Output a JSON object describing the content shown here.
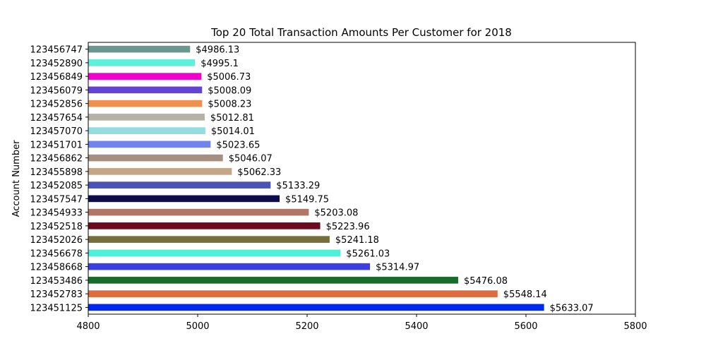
{
  "chart_data": {
    "type": "bar",
    "orientation": "horizontal",
    "title": "Top 20 Total Transaction Amounts Per Customer for 2018",
    "xlabel": "",
    "ylabel": "Account Number",
    "xlim": [
      4800,
      5800
    ],
    "xticks": [
      "4800",
      "5000",
      "5200",
      "5400",
      "5600",
      "5800"
    ],
    "grid": false,
    "value_prefix": "$",
    "categories": [
      "123456747",
      "123452890",
      "123456849",
      "123456079",
      "123452856",
      "123457654",
      "123457070",
      "123451701",
      "123456862",
      "123455898",
      "123452085",
      "123457547",
      "123454933",
      "123452518",
      "123452026",
      "123456678",
      "123458668",
      "123453486",
      "123452783",
      "123451125"
    ],
    "values": [
      4986.13,
      4995.1,
      5006.73,
      5008.09,
      5008.23,
      5012.81,
      5014.01,
      5023.65,
      5046.07,
      5062.33,
      5133.29,
      5149.75,
      5203.08,
      5223.96,
      5241.18,
      5261.03,
      5314.97,
      5476.08,
      5548.14,
      5633.07
    ],
    "value_labels": [
      "$4986.13",
      "$4995.1",
      "$5006.73",
      "$5008.09",
      "$5008.23",
      "$5012.81",
      "$5014.01",
      "$5023.65",
      "$5046.07",
      "$5062.33",
      "$5133.29",
      "$5149.75",
      "$5203.08",
      "$5223.96",
      "$5241.18",
      "$5261.03",
      "$5314.97",
      "$5476.08",
      "$5548.14",
      "$5633.07"
    ],
    "colors": [
      "#6a9890",
      "#5ff0db",
      "#ef00cc",
      "#6144d6",
      "#ee9150",
      "#b5b2a3",
      "#93dde0",
      "#7184ee",
      "#a78e83",
      "#c4a585",
      "#4a53b6",
      "#0c0c4e",
      "#b07766",
      "#6c0a20",
      "#766e3c",
      "#4ff0db",
      "#3d3ee2",
      "#166c2a",
      "#df6c3c",
      "#0028f0"
    ]
  }
}
